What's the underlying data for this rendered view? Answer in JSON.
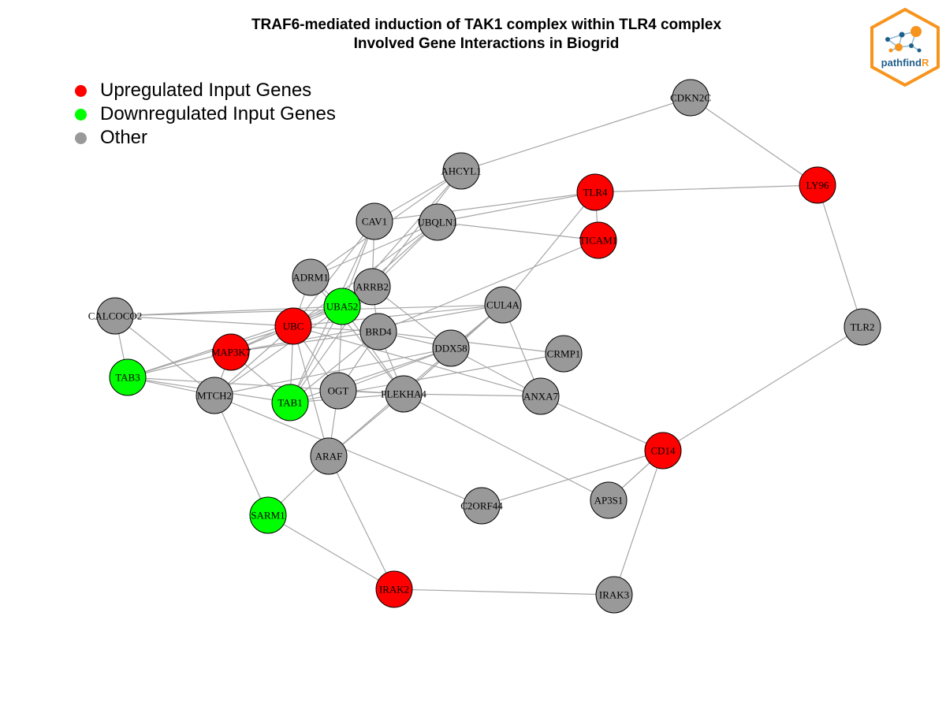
{
  "title": {
    "line1": "TRAF6-mediated induction of TAK1 complex within TLR4 complex",
    "line2": "Involved Gene Interactions in Biogrid"
  },
  "legend": [
    {
      "label": "Upregulated Input Genes",
      "color": "#ff0000"
    },
    {
      "label": "Downregulated Input Genes",
      "color": "#00ff00"
    },
    {
      "label": "Other",
      "color": "#999999"
    }
  ],
  "logo": {
    "text_main": "pathfind",
    "text_accent": "R",
    "border_color": "#f7941d",
    "accent_color": "#f7941d",
    "text_color": "#1f5f8b"
  },
  "colors": {
    "up": "#ff0000",
    "down": "#00ff00",
    "other": "#999999",
    "edge": "#a6a6a6"
  },
  "nodes": [
    {
      "id": "CDKN2C",
      "type": "other"
    },
    {
      "id": "AHCYL1",
      "type": "other"
    },
    {
      "id": "TLR4",
      "type": "up"
    },
    {
      "id": "LY96",
      "type": "up"
    },
    {
      "id": "CAV1",
      "type": "other"
    },
    {
      "id": "UBQLN1",
      "type": "other"
    },
    {
      "id": "TICAM1",
      "type": "up"
    },
    {
      "id": "ADRM1",
      "type": "other"
    },
    {
      "id": "ARRB2",
      "type": "other"
    },
    {
      "id": "UBA52",
      "type": "down"
    },
    {
      "id": "CUL4A",
      "type": "other"
    },
    {
      "id": "CALCOCO2",
      "type": "other"
    },
    {
      "id": "UBC",
      "type": "up"
    },
    {
      "id": "BRD4",
      "type": "other"
    },
    {
      "id": "TLR2",
      "type": "other"
    },
    {
      "id": "MAP3K7",
      "type": "up"
    },
    {
      "id": "DDX58",
      "type": "other"
    },
    {
      "id": "CRMP1",
      "type": "other"
    },
    {
      "id": "TAB3",
      "type": "down"
    },
    {
      "id": "MTCH2",
      "type": "other"
    },
    {
      "id": "OGT",
      "type": "other"
    },
    {
      "id": "PLEKHA4",
      "type": "other"
    },
    {
      "id": "ANXA7",
      "type": "other"
    },
    {
      "id": "TAB1",
      "type": "down"
    },
    {
      "id": "CD14",
      "type": "up"
    },
    {
      "id": "ARAF",
      "type": "other"
    },
    {
      "id": "AP3S1",
      "type": "other"
    },
    {
      "id": "C2ORF44",
      "type": "other"
    },
    {
      "id": "SARM1",
      "type": "down"
    },
    {
      "id": "IRAK2",
      "type": "up"
    },
    {
      "id": "IRAK3",
      "type": "other"
    }
  ],
  "edges": [
    [
      "CDKN2C",
      "AHCYL1"
    ],
    [
      "CDKN2C",
      "LY96"
    ],
    [
      "TLR4",
      "LY96"
    ],
    [
      "LY96",
      "TLR2"
    ],
    [
      "TLR4",
      "TICAM1"
    ],
    [
      "TLR4",
      "CAV1"
    ],
    [
      "TLR4",
      "UBQLN1"
    ],
    [
      "TLR4",
      "CUL4A"
    ],
    [
      "TICAM1",
      "UBQLN1"
    ],
    [
      "TICAM1",
      "BRD4"
    ],
    [
      "AHCYL1",
      "CAV1"
    ],
    [
      "AHCYL1",
      "ARRB2"
    ],
    [
      "AHCYL1",
      "ADRM1"
    ],
    [
      "AHCYL1",
      "UBA52"
    ],
    [
      "UBQLN1",
      "ADRM1"
    ],
    [
      "UBQLN1",
      "UBC"
    ],
    [
      "UBQLN1",
      "ARRB2"
    ],
    [
      "UBQLN1",
      "UBA52"
    ],
    [
      "CAV1",
      "ARRB2"
    ],
    [
      "CAV1",
      "UBC"
    ],
    [
      "CAV1",
      "UBA52"
    ],
    [
      "CAV1",
      "TAB1"
    ],
    [
      "ADRM1",
      "UBC"
    ],
    [
      "ADRM1",
      "UBA52"
    ],
    [
      "ADRM1",
      "PLEKHA4"
    ],
    [
      "ARRB2",
      "UBC"
    ],
    [
      "ARRB2",
      "BRD4"
    ],
    [
      "ARRB2",
      "MAP3K7"
    ],
    [
      "ARRB2",
      "DDX58"
    ],
    [
      "ARRB2",
      "TAB1"
    ],
    [
      "UBA52",
      "CALCOCO2"
    ],
    [
      "UBA52",
      "TAB3"
    ],
    [
      "UBA52",
      "MAP3K7"
    ],
    [
      "UBA52",
      "TAB1"
    ],
    [
      "UBA52",
      "MTCH2"
    ],
    [
      "UBA52",
      "OGT"
    ],
    [
      "UBA52",
      "PLEKHA4"
    ],
    [
      "UBC",
      "CALCOCO2"
    ],
    [
      "UBC",
      "MAP3K7"
    ],
    [
      "UBC",
      "TAB3"
    ],
    [
      "UBC",
      "MTCH2"
    ],
    [
      "UBC",
      "TAB1"
    ],
    [
      "UBC",
      "OGT"
    ],
    [
      "UBC",
      "ARAF"
    ],
    [
      "UBC",
      "CUL4A"
    ],
    [
      "UBC",
      "BRD4"
    ],
    [
      "UBC",
      "ANXA7"
    ],
    [
      "CALCOCO2",
      "CUL4A"
    ],
    [
      "CALCOCO2",
      "TAB3"
    ],
    [
      "CALCOCO2",
      "MTCH2"
    ],
    [
      "BRD4",
      "DDX58"
    ],
    [
      "BRD4",
      "MAP3K7"
    ],
    [
      "BRD4",
      "OGT"
    ],
    [
      "BRD4",
      "PLEKHA4"
    ],
    [
      "BRD4",
      "CRMP1"
    ],
    [
      "BRD4",
      "TAB1"
    ],
    [
      "CUL4A",
      "DDX58"
    ],
    [
      "CUL4A",
      "PLEKHA4"
    ],
    [
      "CUL4A",
      "ANXA7"
    ],
    [
      "CUL4A",
      "MAP3K7"
    ],
    [
      "CUL4A",
      "ARAF"
    ],
    [
      "DDX58",
      "ANXA7"
    ],
    [
      "DDX58",
      "OGT"
    ],
    [
      "DDX58",
      "MTCH2"
    ],
    [
      "DDX58",
      "TAB1"
    ],
    [
      "CRMP1",
      "TAB1"
    ],
    [
      "MAP3K7",
      "TAB3"
    ],
    [
      "MAP3K7",
      "TAB1"
    ],
    [
      "MAP3K7",
      "MTCH2"
    ],
    [
      "TAB3",
      "MTCH2"
    ],
    [
      "TAB3",
      "PLEKHA4"
    ],
    [
      "TAB3",
      "TAB1"
    ],
    [
      "MTCH2",
      "SARM1"
    ],
    [
      "MTCH2",
      "C2ORF44"
    ],
    [
      "OGT",
      "PLEKHA4"
    ],
    [
      "OGT",
      "ARAF"
    ],
    [
      "TAB1",
      "PLEKHA4"
    ],
    [
      "PLEKHA4",
      "ANXA7"
    ],
    [
      "PLEKHA4",
      "ARAF"
    ],
    [
      "PLEKHA4",
      "AP3S1"
    ],
    [
      "ANXA7",
      "CD14"
    ],
    [
      "CD14",
      "TLR2"
    ],
    [
      "CD14",
      "C2ORF44"
    ],
    [
      "CD14",
      "AP3S1"
    ],
    [
      "CD14",
      "IRAK3"
    ],
    [
      "ARAF",
      "SARM1"
    ],
    [
      "ARAF",
      "IRAK2"
    ],
    [
      "SARM1",
      "IRAK2"
    ],
    [
      "IRAK2",
      "IRAK3"
    ]
  ]
}
